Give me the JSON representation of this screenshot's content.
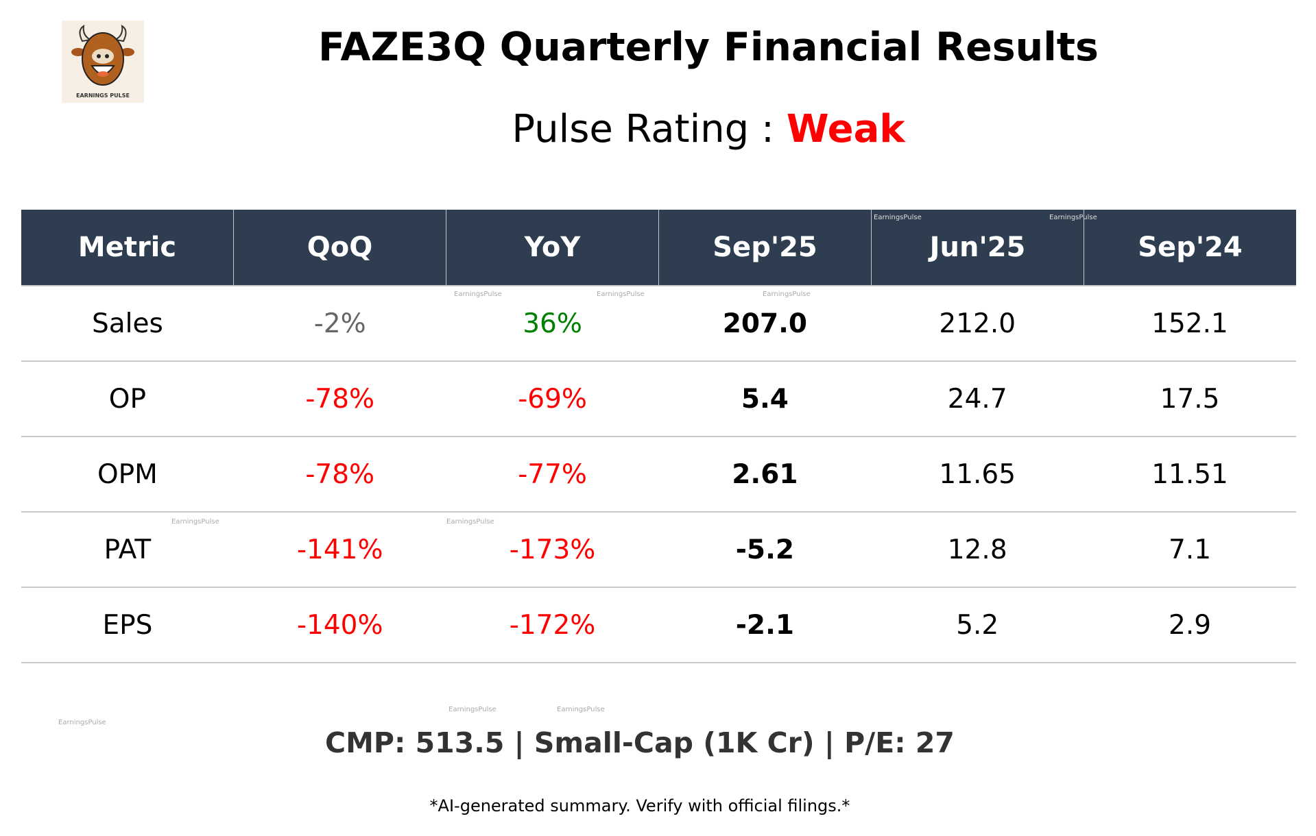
{
  "logo": {
    "text": "EARNINGS PULSE",
    "icon": "bull-mascot-icon"
  },
  "title": "FAZE3Q Quarterly Financial Results",
  "rating": {
    "label": "Pulse Rating :",
    "value": "Weak",
    "color": "#ff0000"
  },
  "table": {
    "headers": [
      "Metric",
      "QoQ",
      "YoY",
      "Sep'25",
      "Jun'25",
      "Sep'24"
    ],
    "header_bg": "#2e3e50",
    "rows": [
      {
        "metric": "Sales",
        "qoq": "-2%",
        "qoq_color": "#666666",
        "yoy": "36%",
        "yoy_color": "#008000",
        "sep25": "207.0",
        "jun25": "212.0",
        "sep24": "152.1"
      },
      {
        "metric": "OP",
        "qoq": "-78%",
        "qoq_color": "#ff0000",
        "yoy": "-69%",
        "yoy_color": "#ff0000",
        "sep25": "5.4",
        "jun25": "24.7",
        "sep24": "17.5"
      },
      {
        "metric": "OPM",
        "qoq": "-78%",
        "qoq_color": "#ff0000",
        "yoy": "-77%",
        "yoy_color": "#ff0000",
        "sep25": "2.61",
        "jun25": "11.65",
        "sep24": "11.51"
      },
      {
        "metric": "PAT",
        "qoq": "-141%",
        "qoq_color": "#ff0000",
        "yoy": "-173%",
        "yoy_color": "#ff0000",
        "sep25": "-5.2",
        "jun25": "12.8",
        "sep24": "7.1"
      },
      {
        "metric": "EPS",
        "qoq": "-140%",
        "qoq_color": "#ff0000",
        "yoy": "-172%",
        "yoy_color": "#ff0000",
        "sep25": "-2.1",
        "jun25": "5.2",
        "sep24": "2.9"
      }
    ]
  },
  "cmp_line": "CMP: 513.5 | Small-Cap (1K Cr) | P/E: 27",
  "disclaimer": "*AI-generated summary. Verify with official filings.*",
  "watermark": "EarningsPulse"
}
